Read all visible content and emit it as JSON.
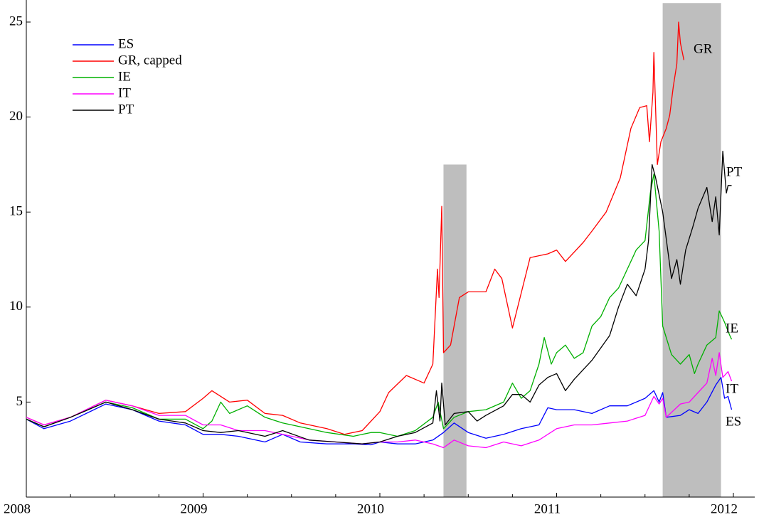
{
  "chart_data": {
    "type": "line",
    "xlim": [
      2008,
      2012
    ],
    "xticks": [
      2008,
      2009,
      2010,
      2011,
      2012
    ],
    "ylim": [
      0,
      25
    ],
    "yticks": [
      5,
      10,
      15,
      20,
      25
    ],
    "legend": "upper-left",
    "shaded": [
      {
        "x": [
          2010.36,
          2010.49
        ],
        "top": 17.5
      },
      {
        "x": [
          2011.6,
          2011.93
        ],
        "top": 26
      }
    ],
    "end_labels": [
      "GR",
      "PT",
      "IE",
      "IT",
      "ES"
    ],
    "series": [
      {
        "name": "ES",
        "color": "#0000ff",
        "x": [
          2008,
          2008.1,
          2008.25,
          2008.45,
          2008.6,
          2008.75,
          2008.9,
          2009,
          2009.1,
          2009.2,
          2009.35,
          2009.45,
          2009.55,
          2009.7,
          2009.85,
          2009.95,
          2010,
          2010.1,
          2010.2,
          2010.3,
          2010.36,
          2010.42,
          2010.5,
          2010.6,
          2010.7,
          2010.8,
          2010.9,
          2010.95,
          2011,
          2011.1,
          2011.2,
          2011.3,
          2011.4,
          2011.5,
          2011.55,
          2011.58,
          2011.6,
          2011.62,
          2011.7,
          2011.75,
          2011.8,
          2011.85,
          2011.9,
          2011.93,
          2011.95,
          2011.97,
          2011.99
        ],
        "values": [
          4.1,
          3.6,
          4.0,
          4.9,
          4.6,
          4.0,
          3.8,
          3.3,
          3.3,
          3.2,
          2.9,
          3.3,
          2.9,
          2.8,
          2.8,
          2.75,
          2.9,
          2.8,
          2.8,
          3.0,
          3.4,
          3.9,
          3.4,
          3.1,
          3.3,
          3.6,
          3.8,
          4.7,
          4.6,
          4.6,
          4.4,
          4.8,
          4.8,
          5.2,
          5.6,
          5.0,
          5.5,
          4.2,
          4.3,
          4.6,
          4.4,
          5.0,
          5.9,
          6.3,
          5.2,
          5.3,
          4.6
        ]
      },
      {
        "name": "GR, capped",
        "color": "#ff0000",
        "x": [
          2008,
          2008.1,
          2008.25,
          2008.45,
          2008.6,
          2008.75,
          2008.9,
          2009,
          2009.05,
          2009.15,
          2009.25,
          2009.35,
          2009.45,
          2009.55,
          2009.7,
          2009.8,
          2009.9,
          2010,
          2010.05,
          2010.15,
          2010.25,
          2010.3,
          2010.326,
          2010.335,
          2010.35,
          2010.36,
          2010.4,
          2010.45,
          2010.5,
          2010.6,
          2010.65,
          2010.69,
          2010.75,
          2010.85,
          2010.95,
          2011,
          2011.05,
          2011.15,
          2011.2,
          2011.28,
          2011.36,
          2011.42,
          2011.47,
          2011.51,
          2011.525,
          2011.545,
          2011.55,
          2011.57,
          2011.59,
          2011.62,
          2011.64,
          2011.66,
          2011.68,
          2011.69,
          2011.7,
          2011.72
        ],
        "values": [
          4.2,
          3.8,
          4.2,
          5.1,
          4.8,
          4.4,
          4.5,
          5.2,
          5.6,
          5.0,
          5.1,
          4.4,
          4.3,
          3.9,
          3.6,
          3.3,
          3.5,
          4.5,
          5.5,
          6.4,
          6.0,
          7.0,
          12.0,
          10.5,
          15.3,
          7.6,
          8.0,
          10.5,
          10.8,
          10.8,
          12.0,
          11.5,
          8.9,
          12.6,
          12.8,
          13.0,
          12.4,
          13.4,
          14.0,
          15.0,
          16.8,
          19.4,
          20.5,
          20.6,
          18.7,
          21.3,
          23.4,
          17.5,
          18.7,
          19.4,
          20.1,
          21.6,
          22.8,
          25,
          23.9,
          23.0
        ]
      },
      {
        "name": "IE",
        "color": "#00b000",
        "x": [
          2008,
          2008.1,
          2008.25,
          2008.45,
          2008.6,
          2008.75,
          2008.9,
          2009,
          2009.05,
          2009.1,
          2009.15,
          2009.25,
          2009.35,
          2009.45,
          2009.55,
          2009.7,
          2009.85,
          2009.95,
          2010,
          2010.1,
          2010.2,
          2010.3,
          2010.33,
          2010.36,
          2010.42,
          2010.5,
          2010.6,
          2010.7,
          2010.75,
          2010.8,
          2010.85,
          2010.9,
          2010.93,
          2010.97,
          2011,
          2011.05,
          2011.1,
          2011.15,
          2011.2,
          2011.25,
          2011.3,
          2011.35,
          2011.4,
          2011.45,
          2011.5,
          2011.53,
          2011.55,
          2011.58,
          2011.6,
          2011.65,
          2011.7,
          2011.75,
          2011.78,
          2011.8,
          2011.85,
          2011.9,
          2011.92,
          2011.95,
          2011.98,
          2011.99
        ],
        "values": [
          4.1,
          3.7,
          4.2,
          5.0,
          4.7,
          4.1,
          4.1,
          3.6,
          4.0,
          5.0,
          4.4,
          4.8,
          4.2,
          3.9,
          3.7,
          3.4,
          3.2,
          3.4,
          3.4,
          3.2,
          3.5,
          4.2,
          5.0,
          3.6,
          4.2,
          4.5,
          4.6,
          5.0,
          6.0,
          5.2,
          5.6,
          7.0,
          8.4,
          7.0,
          7.6,
          8.0,
          7.3,
          7.6,
          9.0,
          9.5,
          10.5,
          11.0,
          12.0,
          13.0,
          13.5,
          16.0,
          17.0,
          14.0,
          9.0,
          7.5,
          7.0,
          7.5,
          6.5,
          7.0,
          8.0,
          8.4,
          9.8,
          9.2,
          8.5,
          8.3
        ]
      },
      {
        "name": "IT",
        "color": "#ff00ff",
        "x": [
          2008,
          2008.1,
          2008.25,
          2008.45,
          2008.6,
          2008.75,
          2008.9,
          2009,
          2009.1,
          2009.2,
          2009.35,
          2009.45,
          2009.6,
          2009.75,
          2009.9,
          2010,
          2010.1,
          2010.2,
          2010.3,
          2010.36,
          2010.42,
          2010.5,
          2010.6,
          2010.7,
          2010.8,
          2010.9,
          2011,
          2011.1,
          2011.2,
          2011.3,
          2011.4,
          2011.5,
          2011.55,
          2011.58,
          2011.6,
          2011.62,
          2011.7,
          2011.75,
          2011.8,
          2011.85,
          2011.88,
          2011.9,
          2011.92,
          2011.94,
          2011.97,
          2011.99
        ],
        "values": [
          4.2,
          3.8,
          4.2,
          5.1,
          4.8,
          4.3,
          4.3,
          3.8,
          3.8,
          3.5,
          3.5,
          3.3,
          3.0,
          2.9,
          2.8,
          2.9,
          2.9,
          3.0,
          2.8,
          2.6,
          3.0,
          2.7,
          2.6,
          2.9,
          2.7,
          3.0,
          3.6,
          3.8,
          3.8,
          3.9,
          4.0,
          4.3,
          5.3,
          4.9,
          5.2,
          4.2,
          4.9,
          5.0,
          5.5,
          6.0,
          7.3,
          6.4,
          7.6,
          6.3,
          6.6,
          6.1
        ]
      },
      {
        "name": "PT",
        "color": "#000000",
        "x": [
          2008,
          2008.1,
          2008.25,
          2008.45,
          2008.6,
          2008.75,
          2008.9,
          2009,
          2009.1,
          2009.2,
          2009.35,
          2009.45,
          2009.6,
          2009.75,
          2009.9,
          2010,
          2010.1,
          2010.2,
          2010.3,
          2010.32,
          2010.34,
          2010.35,
          2010.37,
          2010.42,
          2010.5,
          2010.55,
          2010.6,
          2010.7,
          2010.75,
          2010.8,
          2010.85,
          2010.9,
          2010.95,
          2011,
          2011.05,
          2011.1,
          2011.2,
          2011.3,
          2011.35,
          2011.4,
          2011.45,
          2011.5,
          2011.52,
          2011.54,
          2011.56,
          2011.6,
          2011.65,
          2011.68,
          2011.7,
          2011.73,
          2011.77,
          2011.8,
          2011.85,
          2011.88,
          2011.9,
          2011.92,
          2011.94,
          2011.96,
          2011.97,
          2011.99
        ],
        "values": [
          4.1,
          3.7,
          4.2,
          5.0,
          4.6,
          4.1,
          3.9,
          3.5,
          3.4,
          3.5,
          3.2,
          3.5,
          3.0,
          2.9,
          2.8,
          2.9,
          3.2,
          3.4,
          3.9,
          5.6,
          4.0,
          6.0,
          3.8,
          4.4,
          4.5,
          4.0,
          4.3,
          4.8,
          5.4,
          5.4,
          5.0,
          5.9,
          6.3,
          6.5,
          5.6,
          6.2,
          7.2,
          8.5,
          10.0,
          11.2,
          10.6,
          12.0,
          13.5,
          17.5,
          16.8,
          15.0,
          11.5,
          12.5,
          11.2,
          13.0,
          14.2,
          15.2,
          16.3,
          14.5,
          15.8,
          13.8,
          18.2,
          16.0,
          16.4,
          16.4
        ]
      }
    ]
  }
}
